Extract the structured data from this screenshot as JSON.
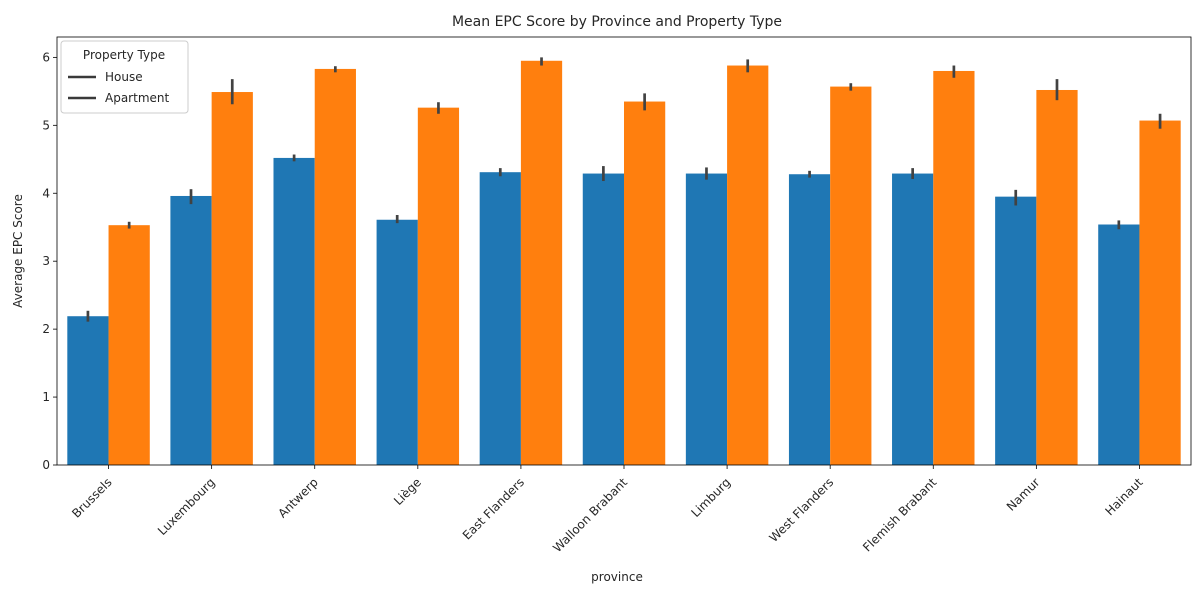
{
  "chart_data": {
    "type": "bar",
    "title": "Mean EPC Score by Province and Property Type",
    "xlabel": "province",
    "ylabel": "Average EPC Score",
    "ylim": [
      0,
      6.3
    ],
    "yticks": [
      0,
      1,
      2,
      3,
      4,
      5,
      6
    ],
    "categories": [
      "Brussels",
      "Luxembourg",
      "Antwerp",
      "Liège",
      "East Flanders",
      "Walloon Brabant",
      "Limburg",
      "West Flanders",
      "Flemish Brabant",
      "Namur",
      "Hainaut"
    ],
    "series": [
      {
        "name": "House",
        "color": "#1f77b4",
        "values": [
          2.19,
          3.96,
          4.52,
          3.61,
          4.31,
          4.29,
          4.29,
          4.28,
          4.29,
          3.95,
          3.54
        ],
        "ci_low": [
          2.11,
          3.84,
          4.47,
          3.56,
          4.25,
          4.18,
          4.2,
          4.23,
          4.21,
          3.82,
          3.47
        ],
        "ci_high": [
          2.27,
          4.06,
          4.57,
          3.68,
          4.37,
          4.4,
          4.38,
          4.33,
          4.37,
          4.05,
          3.6
        ]
      },
      {
        "name": "Apartment",
        "color": "#ff7f0e",
        "values": [
          3.53,
          5.49,
          5.83,
          5.26,
          5.95,
          5.35,
          5.88,
          5.57,
          5.8,
          5.52,
          5.07
        ],
        "ci_low": [
          3.48,
          5.31,
          5.78,
          5.17,
          5.88,
          5.22,
          5.78,
          5.51,
          5.7,
          5.37,
          4.95
        ],
        "ci_high": [
          3.58,
          5.68,
          5.87,
          5.34,
          6.0,
          5.47,
          5.97,
          5.62,
          5.88,
          5.68,
          5.17
        ]
      }
    ],
    "grid": false,
    "legend": {
      "title": "Property Type",
      "placement": "top-left",
      "entries": [
        "House",
        "Apartment"
      ]
    }
  }
}
